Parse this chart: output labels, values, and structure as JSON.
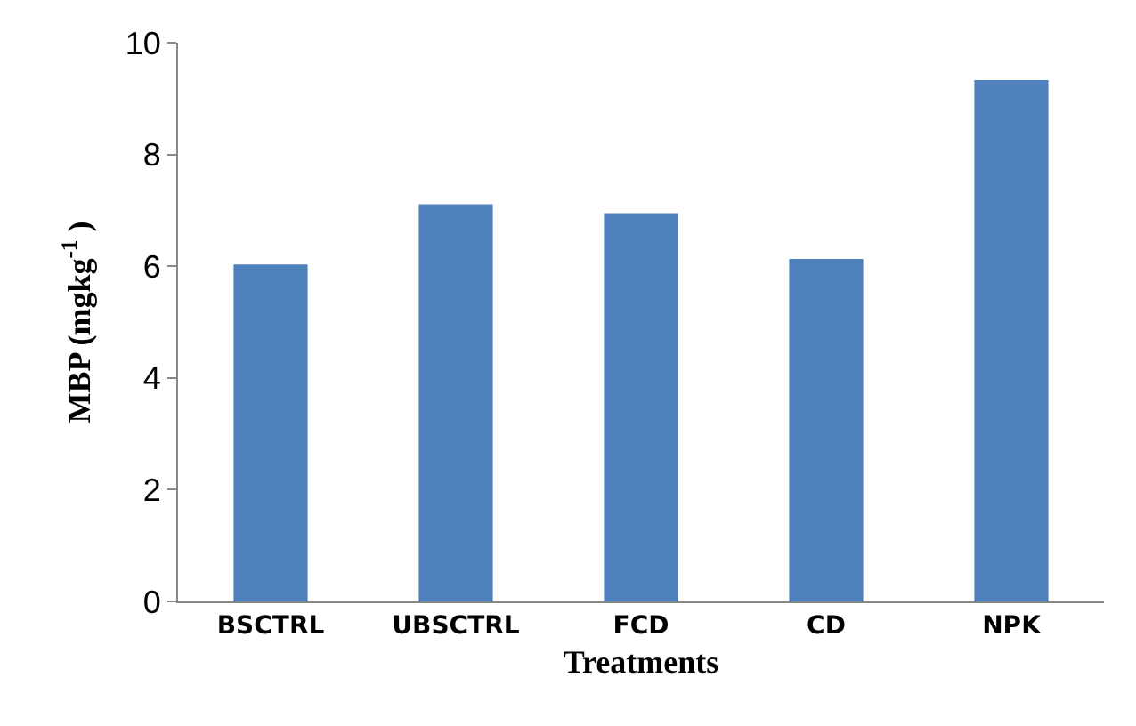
{
  "chart_data": {
    "type": "bar",
    "xlabel": "Treatments",
    "ylabel": "MBP (mgkg$^{-1}$ )",
    "categories": [
      "BSCTRL",
      "UBSCTRL",
      "FCD",
      "CD",
      "NPK"
    ],
    "values": [
      6.03,
      7.11,
      6.95,
      6.13,
      9.33
    ],
    "color": "#4f81bd",
    "ylim": [
      0,
      10
    ],
    "yticks": [
      0,
      2,
      4,
      6,
      8,
      10
    ],
    "grid": false
  }
}
